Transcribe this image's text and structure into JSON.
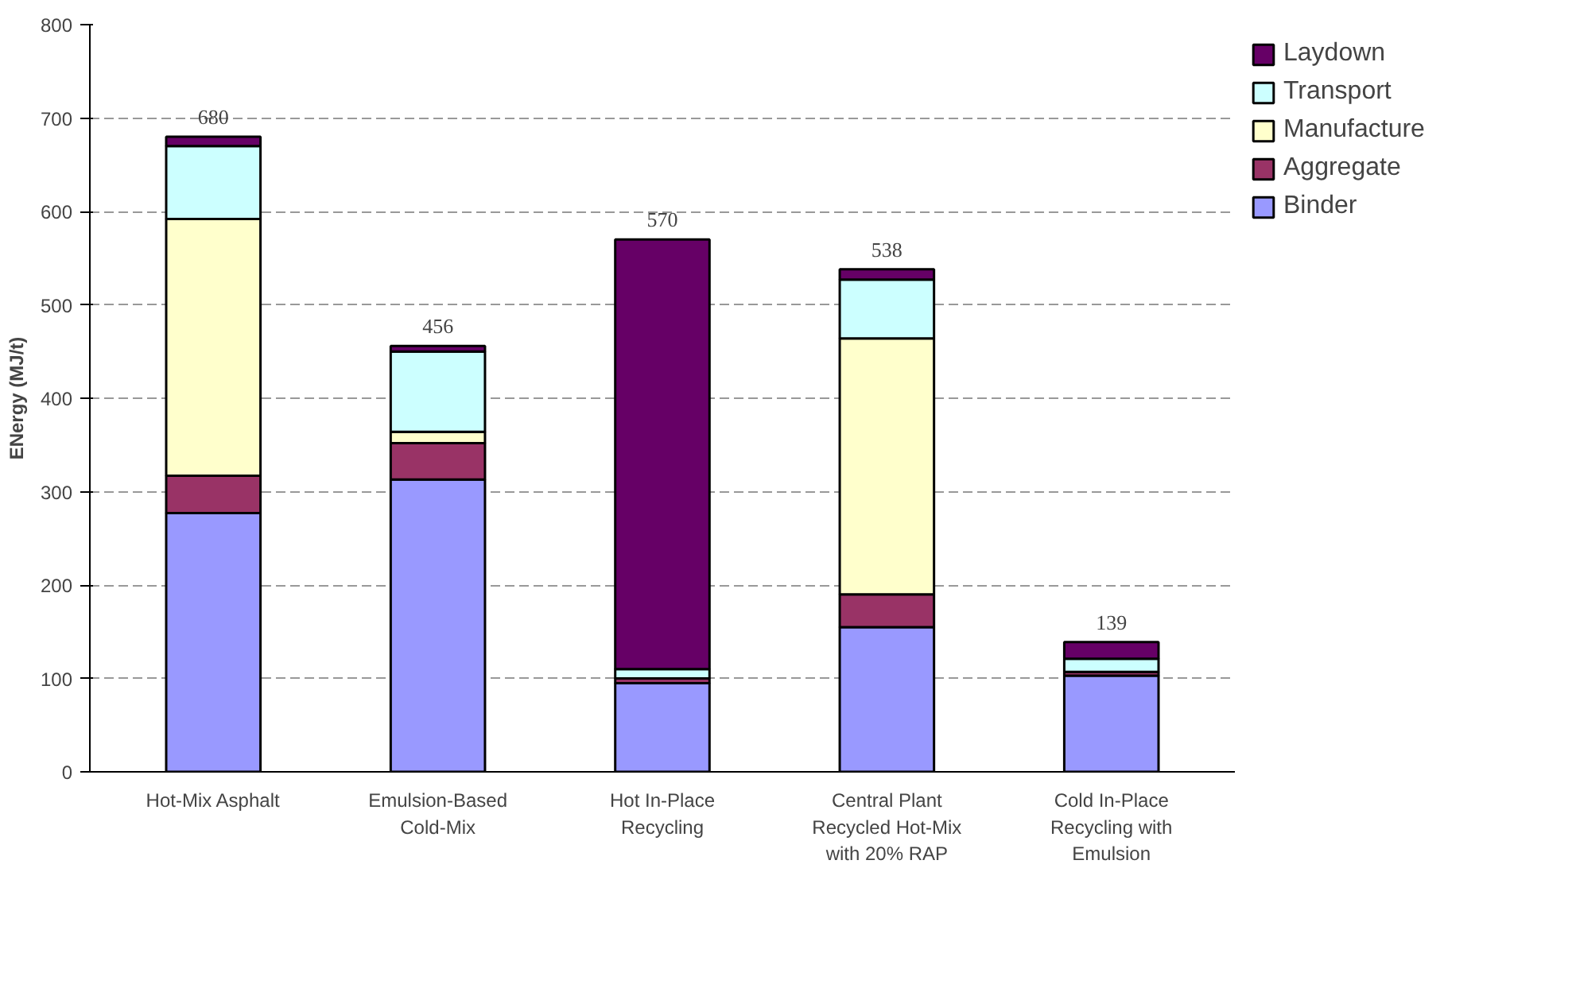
{
  "chart_data": {
    "type": "bar",
    "stacked": true,
    "ylabel": "ENergy (MJ/t)",
    "categories": [
      "Hot-Mix Asphalt",
      "Emulsion-Based\nCold-Mix",
      "Hot In-Place\nRecycling",
      "Central Plant\nRecycled Hot-Mix\nwith 20% RAP",
      "Cold In-Place\nRecycling with\nEmulsion"
    ],
    "series": [
      {
        "name": "Binder",
        "color": "#9999ff",
        "values": [
          277,
          313,
          95,
          155,
          103
        ]
      },
      {
        "name": "Aggregate",
        "color": "#993366",
        "values": [
          40,
          39,
          5,
          35,
          4
        ]
      },
      {
        "name": "Manufacture",
        "color": "#ffffcc",
        "values": [
          275,
          12,
          0,
          274,
          0
        ]
      },
      {
        "name": "Transport",
        "color": "#ccffff",
        "values": [
          78,
          86,
          10,
          63,
          14
        ]
      },
      {
        "name": "Laydown",
        "color": "#660066",
        "values": [
          10,
          6,
          460,
          11,
          18
        ]
      }
    ],
    "totals": [
      "680",
      "456",
      "570",
      "538",
      "139"
    ],
    "ylim": [
      0,
      800
    ],
    "yticks": [
      0,
      100,
      200,
      300,
      400,
      500,
      600,
      700,
      800
    ],
    "grid": "y",
    "legend": "right"
  }
}
